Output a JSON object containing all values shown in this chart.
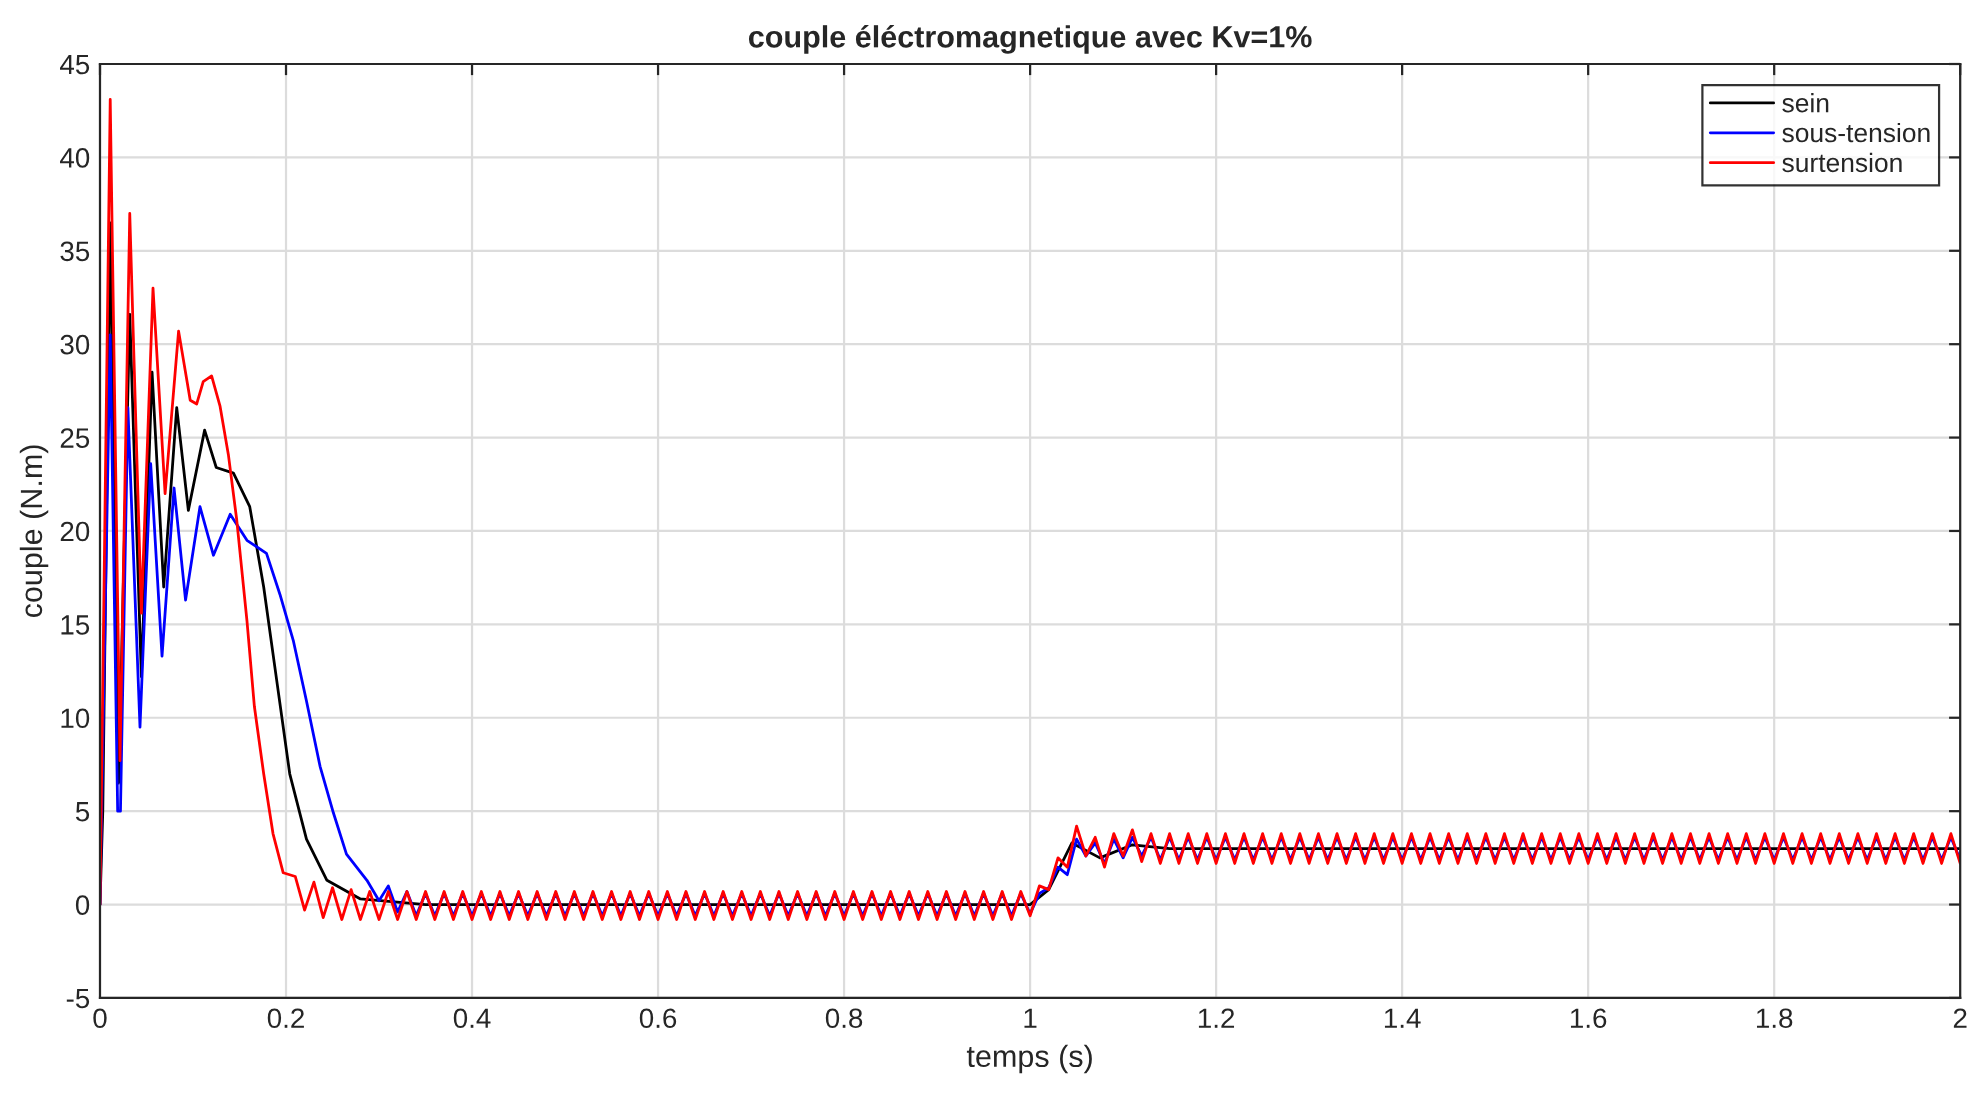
{
  "chart_data": {
    "type": "line",
    "title": "couple éléctromagnetique avec Kv=1%",
    "xlabel": "temps (s)",
    "ylabel": "couple (N.m)",
    "xlim": [
      0,
      2
    ],
    "ylim": [
      -5,
      45
    ],
    "xticks": [
      0,
      0.2,
      0.4,
      0.6,
      0.8,
      1,
      1.2,
      1.4,
      1.6,
      1.8,
      2
    ],
    "yticks": [
      -5,
      0,
      5,
      10,
      15,
      20,
      25,
      30,
      35,
      40,
      45
    ],
    "grid": true,
    "legend": "top right",
    "series": [
      {
        "name": "sein",
        "color": "#000000",
        "x": [
          0,
          0.003,
          0.011,
          0.02,
          0.032,
          0.0445,
          0.056,
          0.0685,
          0.0825,
          0.095,
          0.1125,
          0.125,
          0.1435,
          0.161,
          0.176,
          0.19,
          0.204,
          0.222,
          0.244,
          0.28,
          0.35,
          1,
          1.02,
          1.045,
          1.075,
          1.11,
          1.15,
          2
        ],
        "values": [
          0,
          5,
          36.5,
          6.5,
          31.6,
          12.2,
          28.5,
          17.0,
          26.6,
          21.1,
          25.4,
          23.4,
          23.1,
          21.3,
          17.0,
          12.0,
          7.0,
          3.5,
          1.3,
          0.3,
          0,
          0,
          0.8,
          3.3,
          2.5,
          3.2,
          3.0,
          3.0
        ]
      },
      {
        "name": "sous-tension",
        "color": "#0000ff",
        "x": [
          0,
          0.011,
          0.019,
          0.022,
          0.03,
          0.043,
          0.0545,
          0.0667,
          0.0796,
          0.092,
          0.1075,
          0.122,
          0.14,
          0.158,
          0.179,
          0.1935,
          0.208,
          0.222,
          0.2366,
          0.251,
          0.265,
          0.287,
          0.3,
          0.31,
          0.32,
          0.33,
          0.34,
          0.35,
          0.36,
          0.37,
          0.38,
          0.39,
          0.4,
          0.41,
          0.42,
          0.43,
          0.44,
          0.45,
          0.46,
          0.47,
          0.48,
          0.49,
          0.5,
          0.51,
          0.52,
          0.53,
          0.54,
          0.55,
          0.56,
          0.57,
          0.58,
          0.59,
          0.6,
          0.61,
          0.62,
          0.63,
          0.64,
          0.65,
          0.66,
          0.67,
          0.68,
          0.69,
          0.7,
          0.71,
          0.72,
          0.73,
          0.74,
          0.75,
          0.76,
          0.77,
          0.78,
          0.79,
          0.8,
          0.81,
          0.82,
          0.83,
          0.84,
          0.85,
          0.86,
          0.87,
          0.88,
          0.89,
          0.9,
          0.91,
          0.92,
          0.93,
          0.94,
          0.95,
          0.96,
          0.97,
          0.98,
          0.99,
          1,
          1.01,
          1.02,
          1.03,
          1.04,
          1.05,
          1.06,
          1.07,
          1.08,
          1.09,
          1.1,
          1.11,
          1.12,
          1.13,
          1.14,
          1.15,
          1.16,
          1.17,
          1.18,
          1.19,
          1.2,
          1.21,
          1.22,
          1.23,
          1.24,
          1.25,
          1.26,
          1.27,
          1.28,
          1.29,
          1.3,
          1.31,
          1.32,
          1.33,
          1.34,
          1.35,
          1.36,
          1.37,
          1.38,
          1.39,
          1.4,
          1.41,
          1.42,
          1.43,
          1.44,
          1.45,
          1.46,
          1.47,
          1.48,
          1.49,
          1.5,
          1.51,
          1.52,
          1.53,
          1.54,
          1.55,
          1.56,
          1.57,
          1.58,
          1.59,
          1.6,
          1.61,
          1.62,
          1.63,
          1.64,
          1.65,
          1.66,
          1.67,
          1.68,
          1.69,
          1.7,
          1.71,
          1.72,
          1.73,
          1.74,
          1.75,
          1.76,
          1.77,
          1.78,
          1.79,
          1.8,
          1.81,
          1.82,
          1.83,
          1.84,
          1.85,
          1.86,
          1.87,
          1.88,
          1.89,
          1.9,
          1.91,
          1.92,
          1.93,
          1.94,
          1.95,
          1.96,
          1.97,
          1.98,
          1.99,
          2
        ],
        "values": [
          0,
          30.5,
          5,
          5,
          26.6,
          9.5,
          23.6,
          13.3,
          22.3,
          16.3,
          21.3,
          18.7,
          20.9,
          19.5,
          18.8,
          16.6,
          14.1,
          10.9,
          7.4,
          4.9,
          2.7,
          1.3,
          0.2,
          1.0,
          -0.4,
          0.7,
          -0.6,
          0.6,
          -0.6,
          0.6,
          -0.6,
          0.6,
          -0.6,
          0.6,
          -0.6,
          0.6,
          -0.6,
          0.6,
          -0.6,
          0.6,
          -0.6,
          0.6,
          -0.6,
          0.6,
          -0.6,
          0.6,
          -0.6,
          0.6,
          -0.6,
          0.6,
          -0.6,
          0.6,
          -0.6,
          0.6,
          -0.6,
          0.6,
          -0.6,
          0.6,
          -0.6,
          0.6,
          -0.6,
          0.6,
          -0.6,
          0.6,
          -0.6,
          0.6,
          -0.6,
          0.6,
          -0.6,
          0.6,
          -0.6,
          0.6,
          -0.6,
          0.6,
          -0.6,
          0.6,
          -0.6,
          0.6,
          -0.6,
          0.6,
          -0.6,
          0.6,
          -0.6,
          0.6,
          -0.6,
          0.6,
          -0.6,
          0.6,
          -0.6,
          0.6,
          -0.6,
          0.6,
          -0.5,
          0.6,
          0.9,
          2.0,
          1.6,
          3.5,
          2.6,
          3.3,
          2.2,
          3.5,
          2.5,
          3.6,
          2.6,
          3.6,
          2.4,
          3.6,
          2.4,
          3.6,
          2.4,
          3.6,
          2.4,
          3.6,
          2.4,
          3.6,
          2.4,
          3.6,
          2.4,
          3.6,
          2.4,
          3.6,
          2.4,
          3.6,
          2.4,
          3.6,
          2.4,
          3.6,
          2.4,
          3.6,
          2.4,
          3.6,
          2.4,
          3.6,
          2.4,
          3.6,
          2.4,
          3.6,
          2.4,
          3.6,
          2.4,
          3.6,
          2.4,
          3.6,
          2.4,
          3.6,
          2.4,
          3.6,
          2.4,
          3.6,
          2.4,
          3.6,
          2.4,
          3.6,
          2.4,
          3.6,
          2.4,
          3.6,
          2.4,
          3.6,
          2.4,
          3.6,
          2.4,
          3.6,
          2.4,
          3.6,
          2.4,
          3.6,
          2.4,
          3.6,
          2.4,
          3.6,
          2.4,
          3.6,
          2.4,
          3.6,
          2.4,
          3.6,
          2.4,
          3.6,
          2.4,
          3.6,
          2.4,
          3.6,
          2.4,
          3.6,
          2.4,
          3.6,
          2.4,
          3.6,
          2.4,
          3.6,
          2.4
        ]
      },
      {
        "name": "surtension",
        "color": "#ff0000",
        "x": [
          0,
          0.011,
          0.0215,
          0.032,
          0.0445,
          0.057,
          0.07,
          0.0845,
          0.097,
          0.104,
          0.111,
          0.12,
          0.129,
          0.138,
          0.147,
          0.158,
          0.166,
          0.176,
          0.186,
          0.197,
          0.21,
          0.22,
          0.23,
          0.24,
          0.25,
          0.26,
          0.27,
          0.28,
          0.29,
          0.3,
          0.31,
          0.32,
          0.33,
          0.34,
          0.35,
          0.36,
          0.37,
          0.38,
          0.39,
          0.4,
          0.41,
          0.42,
          0.43,
          0.44,
          0.45,
          0.46,
          0.47,
          0.48,
          0.49,
          0.5,
          0.51,
          0.52,
          0.53,
          0.54,
          0.55,
          0.56,
          0.57,
          0.58,
          0.59,
          0.6,
          0.61,
          0.62,
          0.63,
          0.64,
          0.65,
          0.66,
          0.67,
          0.68,
          0.69,
          0.7,
          0.71,
          0.72,
          0.73,
          0.74,
          0.75,
          0.76,
          0.77,
          0.78,
          0.79,
          0.8,
          0.81,
          0.82,
          0.83,
          0.84,
          0.85,
          0.86,
          0.87,
          0.88,
          0.89,
          0.9,
          0.91,
          0.92,
          0.93,
          0.94,
          0.95,
          0.96,
          0.97,
          0.98,
          0.99,
          1,
          1.01,
          1.02,
          1.03,
          1.04,
          1.05,
          1.06,
          1.07,
          1.08,
          1.09,
          1.1,
          1.11,
          1.12,
          1.13,
          1.14,
          1.15,
          1.16,
          1.17,
          1.18,
          1.19,
          1.2,
          1.21,
          1.22,
          1.23,
          1.24,
          1.25,
          1.26,
          1.27,
          1.28,
          1.29,
          1.3,
          1.31,
          1.32,
          1.33,
          1.34,
          1.35,
          1.36,
          1.37,
          1.38,
          1.39,
          1.4,
          1.41,
          1.42,
          1.43,
          1.44,
          1.45,
          1.46,
          1.47,
          1.48,
          1.49,
          1.5,
          1.51,
          1.52,
          1.53,
          1.54,
          1.55,
          1.56,
          1.57,
          1.58,
          1.59,
          1.6,
          1.61,
          1.62,
          1.63,
          1.64,
          1.65,
          1.66,
          1.67,
          1.68,
          1.69,
          1.7,
          1.71,
          1.72,
          1.73,
          1.74,
          1.75,
          1.76,
          1.77,
          1.78,
          1.79,
          1.8,
          1.81,
          1.82,
          1.83,
          1.84,
          1.85,
          1.86,
          1.87,
          1.88,
          1.89,
          1.9,
          1.91,
          1.92,
          1.93,
          1.94,
          1.95,
          1.96,
          1.97,
          1.98,
          1.99,
          2
        ],
        "values": [
          0,
          43.1,
          7.7,
          37.0,
          15.6,
          33.0,
          22.0,
          30.7,
          27.0,
          26.8,
          28.0,
          28.3,
          26.7,
          24.1,
          20.6,
          15.2,
          10.6,
          7.0,
          3.8,
          1.7,
          1.5,
          -0.3,
          1.2,
          -0.7,
          0.9,
          -0.8,
          0.8,
          -0.8,
          0.7,
          -0.8,
          0.7,
          -0.8,
          0.7,
          -0.8,
          0.7,
          -0.8,
          0.7,
          -0.8,
          0.7,
          -0.8,
          0.7,
          -0.8,
          0.7,
          -0.8,
          0.7,
          -0.8,
          0.7,
          -0.8,
          0.7,
          -0.8,
          0.7,
          -0.8,
          0.7,
          -0.8,
          0.7,
          -0.8,
          0.7,
          -0.8,
          0.7,
          -0.8,
          0.7,
          -0.8,
          0.7,
          -0.8,
          0.7,
          -0.8,
          0.7,
          -0.8,
          0.7,
          -0.8,
          0.7,
          -0.8,
          0.7,
          -0.8,
          0.7,
          -0.8,
          0.7,
          -0.8,
          0.7,
          -0.8,
          0.7,
          -0.8,
          0.7,
          -0.8,
          0.7,
          -0.8,
          0.7,
          -0.8,
          0.7,
          -0.8,
          0.7,
          -0.8,
          0.7,
          -0.8,
          0.7,
          -0.8,
          0.7,
          -0.8,
          0.7,
          -0.6,
          1.0,
          0.8,
          2.5,
          2.0,
          4.2,
          2.6,
          3.6,
          2.0,
          3.8,
          2.6,
          4.0,
          2.3,
          3.8,
          2.2,
          3.8,
          2.2,
          3.8,
          2.2,
          3.8,
          2.2,
          3.8,
          2.2,
          3.8,
          2.2,
          3.8,
          2.2,
          3.8,
          2.2,
          3.8,
          2.2,
          3.8,
          2.2,
          3.8,
          2.2,
          3.8,
          2.2,
          3.8,
          2.2,
          3.8,
          2.2,
          3.8,
          2.2,
          3.8,
          2.2,
          3.8,
          2.2,
          3.8,
          2.2,
          3.8,
          2.2,
          3.8,
          2.2,
          3.8,
          2.2,
          3.8,
          2.2,
          3.8,
          2.2,
          3.8,
          2.2,
          3.8,
          2.2,
          3.8,
          2.2,
          3.8,
          2.2,
          3.8,
          2.2,
          3.8,
          2.2,
          3.8,
          2.2,
          3.8,
          2.2,
          3.8,
          2.2,
          3.8,
          2.2,
          3.8,
          2.2,
          3.8,
          2.2,
          3.8,
          2.2,
          3.8,
          2.2,
          3.8,
          2.2,
          3.8,
          2.2,
          3.8,
          2.2,
          3.8,
          2.2,
          3.8,
          2.2,
          3.8,
          2.2,
          3.8,
          2.2
        ]
      }
    ]
  }
}
